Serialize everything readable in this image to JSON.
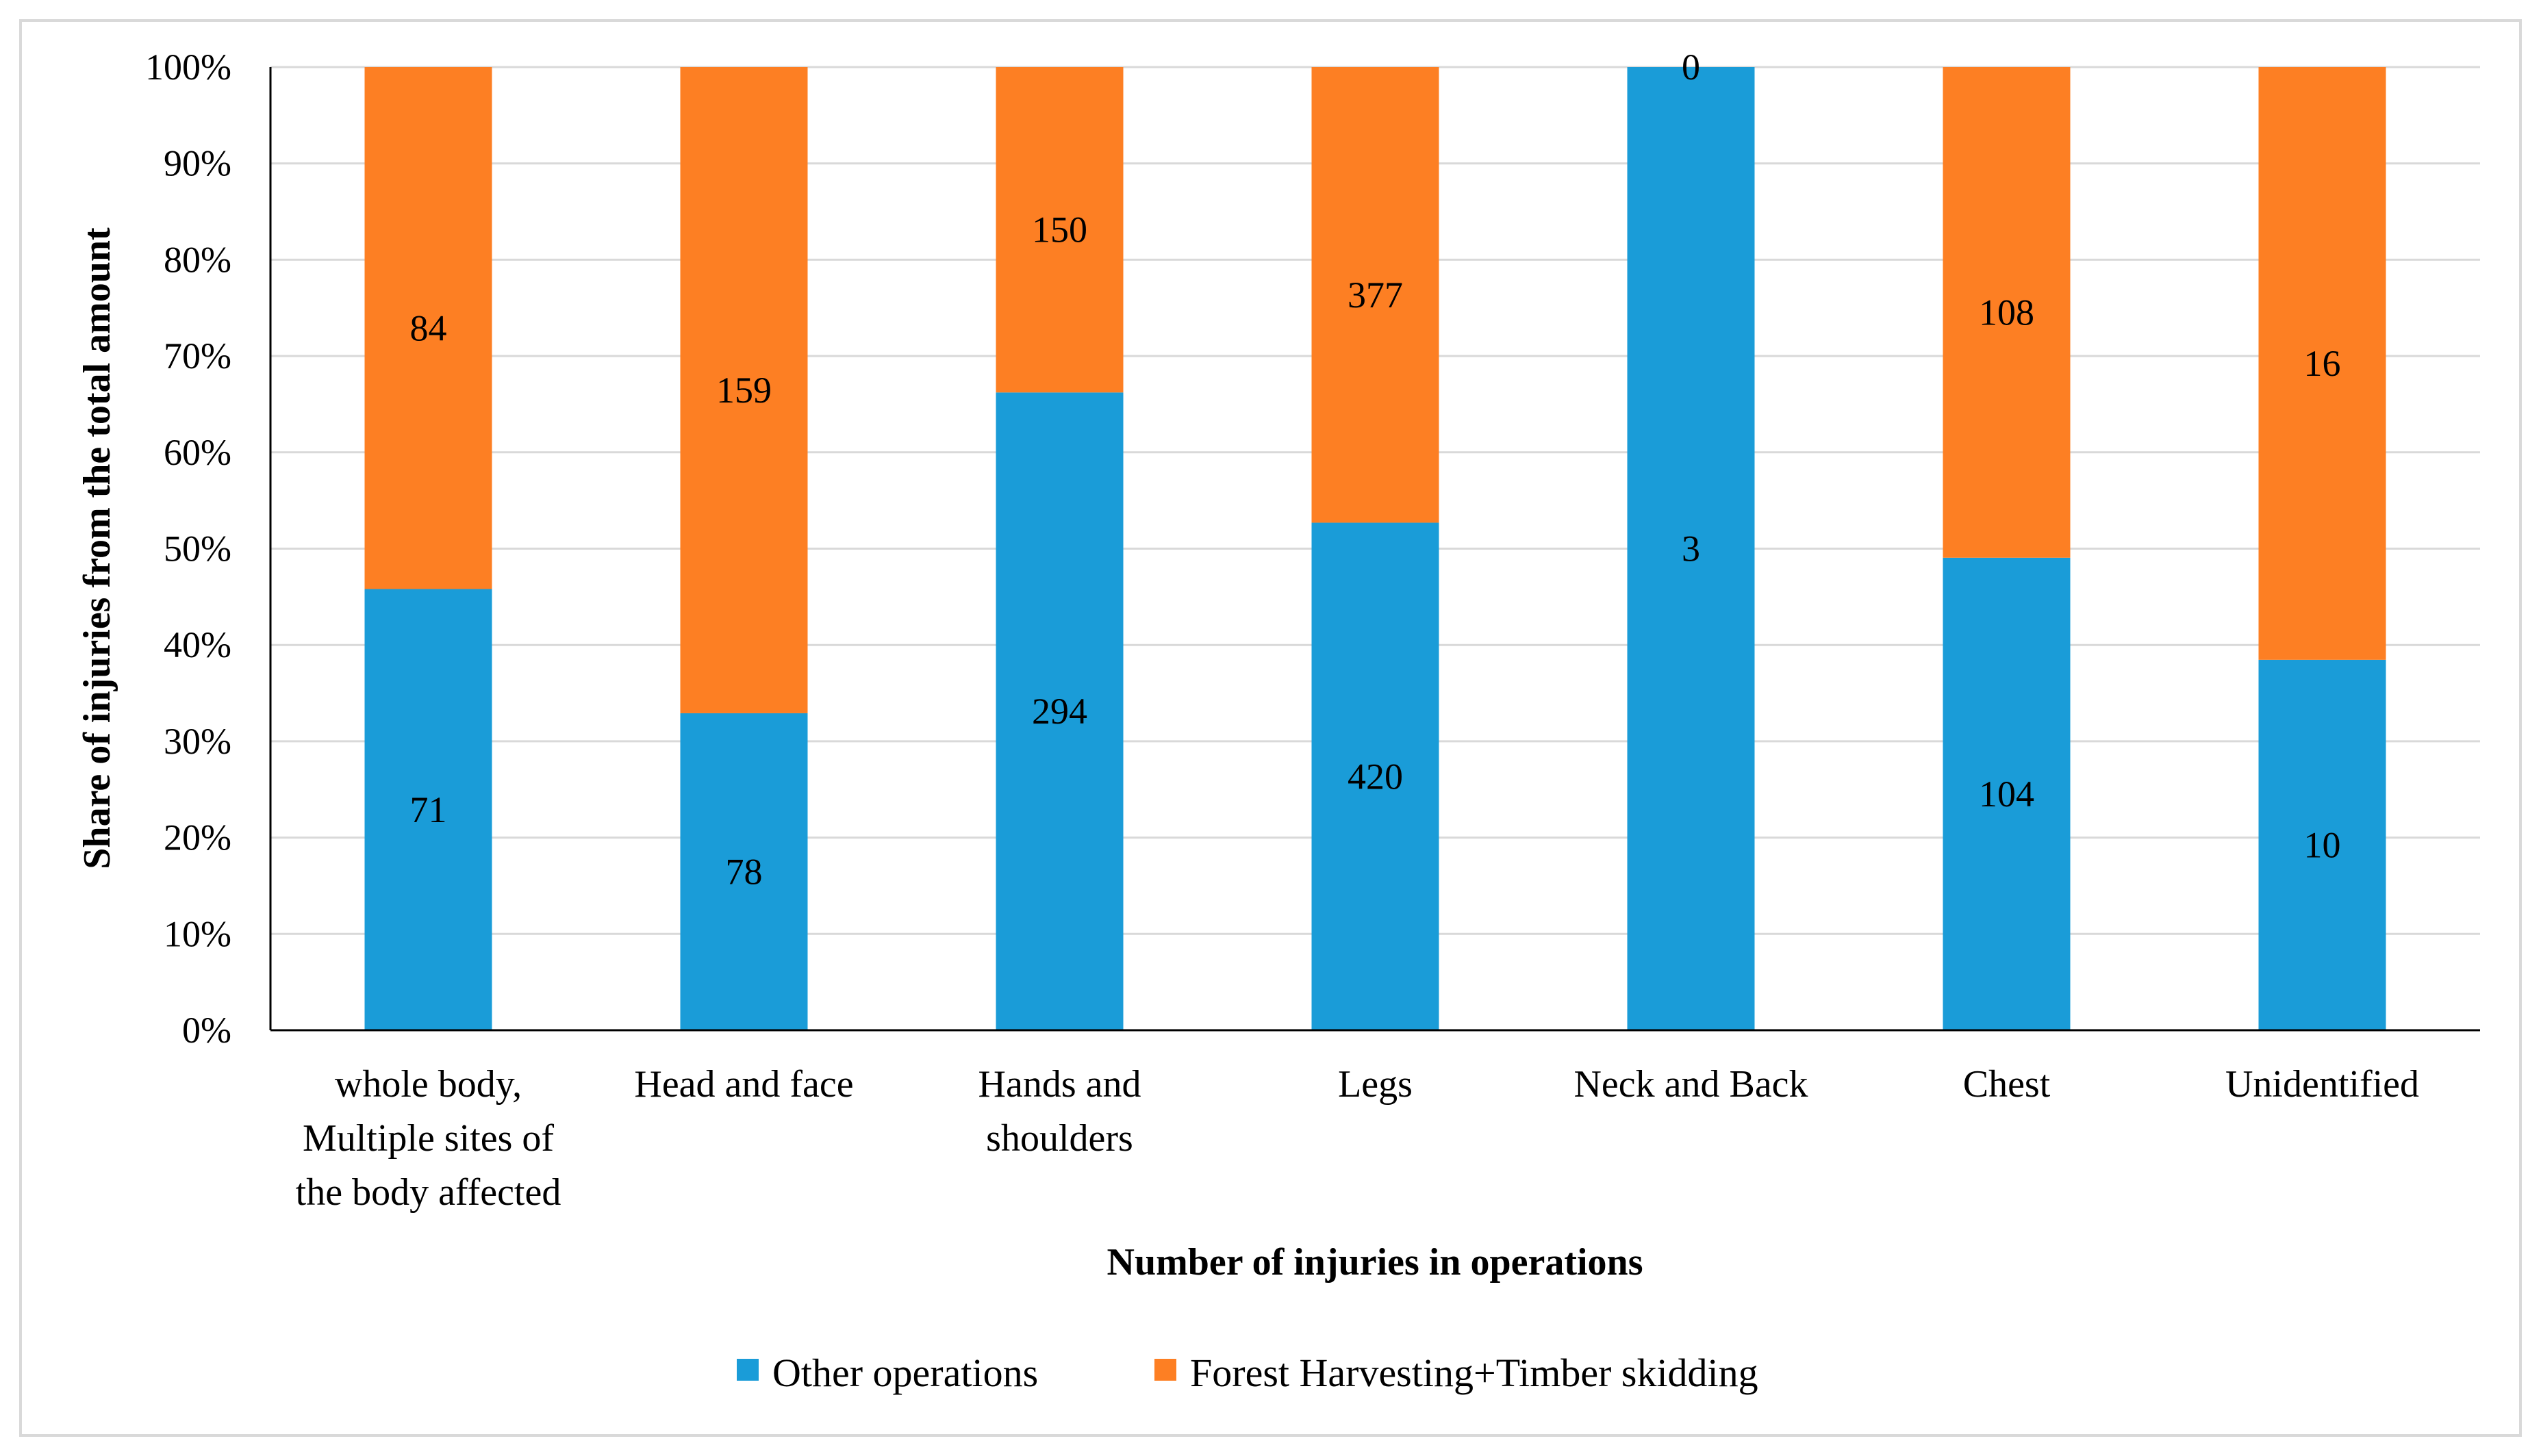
{
  "chart_data": {
    "type": "bar",
    "stacked": "percent",
    "title": "",
    "xlabel": "Number of injuries in operations",
    "ylabel": "Share of injuries from the total amount",
    "ylim": [
      0,
      100
    ],
    "yticks": [
      "0%",
      "10%",
      "20%",
      "30%",
      "40%",
      "50%",
      "60%",
      "70%",
      "80%",
      "90%",
      "100%"
    ],
    "grid": true,
    "legend_position": "bottom",
    "categories": [
      [
        "whole body,",
        "Multiple sites of",
        "the body affected"
      ],
      [
        "Head and face"
      ],
      [
        "Hands and",
        "shoulders"
      ],
      [
        "Legs"
      ],
      [
        "Neck and Back"
      ],
      [
        "Chest"
      ],
      [
        "Unidentified"
      ]
    ],
    "series": [
      {
        "name": "Other operations",
        "color": "#1a9cd8",
        "values": [
          71,
          78,
          294,
          420,
          3,
          104,
          10
        ]
      },
      {
        "name": "Forest Harvesting+Timber skidding",
        "color": "#fd7f23",
        "values": [
          84,
          159,
          150,
          377,
          0,
          108,
          16
        ]
      }
    ]
  }
}
